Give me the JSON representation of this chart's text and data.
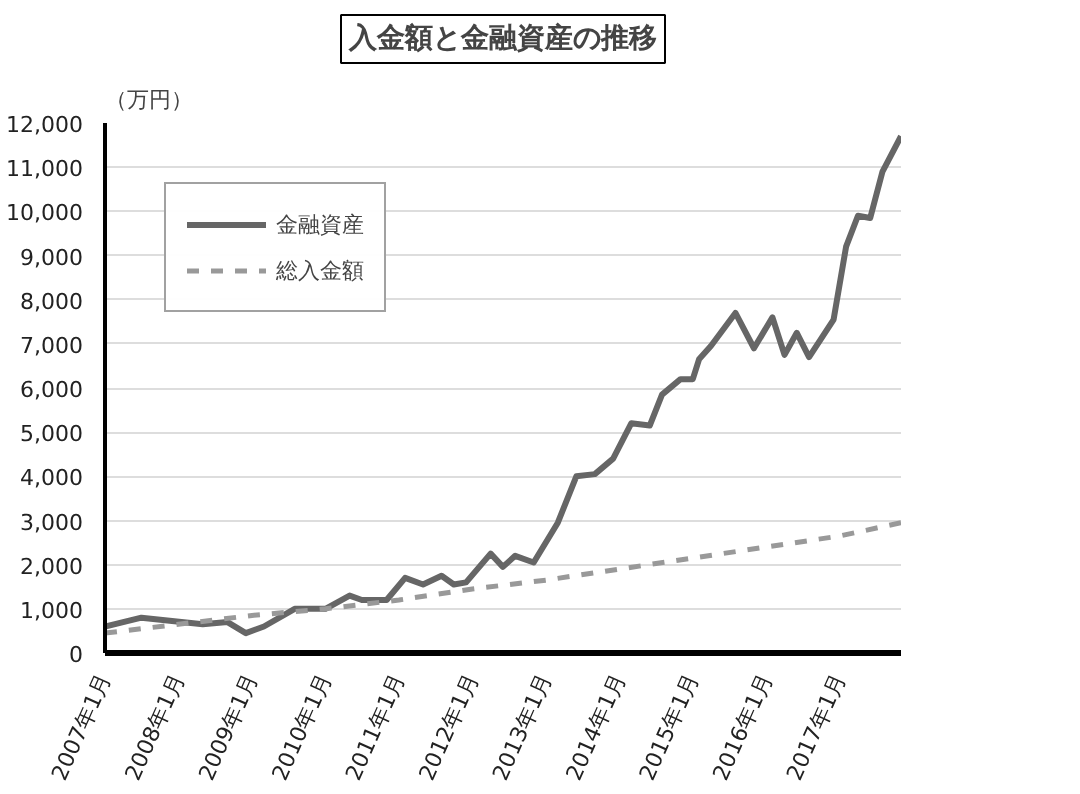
{
  "chart_data": {
    "type": "line",
    "title": "入金額と金融資産の推移",
    "ylabel": "（万円）",
    "xlim": [
      "2007-01",
      "2017-11"
    ],
    "xticks": [
      {
        "value": "2007-01",
        "label": "2007年1月"
      },
      {
        "value": "2008-01",
        "label": "2008年1月"
      },
      {
        "value": "2009-01",
        "label": "2009年1月"
      },
      {
        "value": "2010-01",
        "label": "2010年1月"
      },
      {
        "value": "2011-01",
        "label": "2011年1月"
      },
      {
        "value": "2012-01",
        "label": "2012年1月"
      },
      {
        "value": "2013-01",
        "label": "2013年1月"
      },
      {
        "value": "2014-01",
        "label": "2014年1月"
      },
      {
        "value": "2015-01",
        "label": "2015年1月"
      },
      {
        "value": "2016-01",
        "label": "2016年1月"
      },
      {
        "value": "2017-01",
        "label": "2017年1月"
      }
    ],
    "ylim": [
      0,
      12000
    ],
    "yticks": [
      {
        "value": 0,
        "label": "0"
      },
      {
        "value": 1000,
        "label": "1,000"
      },
      {
        "value": 2000,
        "label": "2,000"
      },
      {
        "value": 3000,
        "label": "3,000"
      },
      {
        "value": 4000,
        "label": "4,000"
      },
      {
        "value": 5000,
        "label": "5,000"
      },
      {
        "value": 6000,
        "label": "6,000"
      },
      {
        "value": 7000,
        "label": "7,000"
      },
      {
        "value": 8000,
        "label": "8,000"
      },
      {
        "value": 9000,
        "label": "9,000"
      },
      {
        "value": 10000,
        "label": "10,000"
      },
      {
        "value": 11000,
        "label": "11,000"
      },
      {
        "value": 12000,
        "label": "12,000"
      }
    ],
    "grid": "y",
    "legend": "top left",
    "series": [
      {
        "name": "金融資産",
        "color": "#666666",
        "line_style": "solid",
        "x": [
          "2007-01",
          "2007-07",
          "2008-05",
          "2008-09",
          "2008-12",
          "2009-03",
          "2009-08",
          "2010-01",
          "2010-05",
          "2010-07",
          "2010-11",
          "2011-02",
          "2011-05",
          "2011-08",
          "2011-10",
          "2011-12",
          "2012-04",
          "2012-06",
          "2012-08",
          "2012-11",
          "2013-03",
          "2013-06",
          "2013-09",
          "2013-12",
          "2014-03",
          "2014-06",
          "2014-08",
          "2014-11",
          "2015-01",
          "2015-02",
          "2015-04",
          "2015-08",
          "2015-11",
          "2016-02",
          "2016-04",
          "2016-06",
          "2016-08",
          "2016-12",
          "2017-02",
          "2017-04",
          "2017-06",
          "2017-08",
          "2017-11"
        ],
        "values": [
          600,
          800,
          650,
          700,
          450,
          600,
          1000,
          1000,
          1300,
          1200,
          1200,
          1700,
          1550,
          1750,
          1550,
          1600,
          2250,
          1950,
          2200,
          2050,
          2950,
          4000,
          4050,
          4400,
          5200,
          5150,
          5850,
          6200,
          6200,
          6650,
          6950,
          7700,
          6900,
          7600,
          6750,
          7250,
          6700,
          7550,
          9200,
          9900,
          9850,
          10900,
          11700
        ]
      },
      {
        "name": "総入金額",
        "color": "#999999",
        "line_style": "dashed",
        "x": [
          "2007-01",
          "2008-01",
          "2009-01",
          "2010-01",
          "2011-01",
          "2012-01",
          "2013-01",
          "2014-01",
          "2015-01",
          "2016-01",
          "2017-01",
          "2017-11"
        ],
        "values": [
          450,
          650,
          850,
          1000,
          1200,
          1450,
          1650,
          1900,
          2150,
          2400,
          2650,
          2950
        ]
      }
    ]
  }
}
